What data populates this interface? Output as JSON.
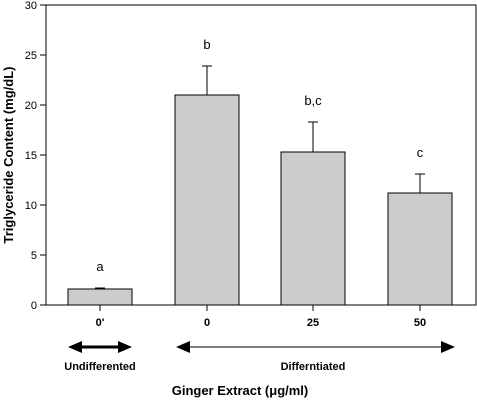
{
  "chart_data": {
    "type": "bar",
    "categories": [
      "0'",
      "0",
      "25",
      "50"
    ],
    "values": [
      1.6,
      21.0,
      15.3,
      11.2
    ],
    "errors": [
      0.1,
      2.9,
      3.0,
      1.9
    ],
    "significance_labels": [
      "a",
      "b",
      "b,c",
      "c"
    ],
    "xlabel": "Ginger Extract (μg/ml)",
    "ylabel": "Triglyceride Content (mg/dL)",
    "ylim": [
      0,
      30
    ],
    "yticks": [
      0,
      5,
      10,
      15,
      20,
      25,
      30
    ],
    "bar_color": "#cccccc",
    "grid": false,
    "groups": [
      {
        "label": "Undifferented",
        "categories": [
          "0'"
        ]
      },
      {
        "label": "Differntiated",
        "categories": [
          "0",
          "25",
          "50"
        ]
      }
    ]
  }
}
